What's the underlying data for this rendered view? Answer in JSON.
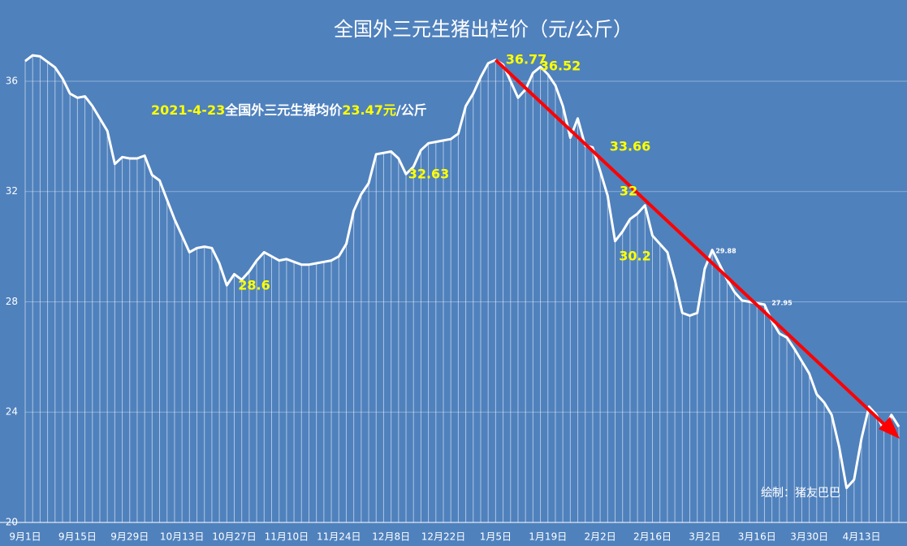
{
  "chart_data": {
    "type": "line",
    "title": "全国外三元生猪出栏价（元/公斤）",
    "subtitle": [
      "2021-4-23",
      "全国外三元生猪均价",
      "23.47元",
      "/公斤"
    ],
    "credit": "绘制：猪友巴巴",
    "annotations": [
      "36.77",
      "36.52",
      "33.66",
      "32",
      "30.2",
      "32.63",
      "28.6",
      "29.88",
      "27.95"
    ],
    "categories": [
      "9月1日",
      null,
      null,
      null,
      null,
      null,
      null,
      "9月15日",
      null,
      null,
      null,
      null,
      null,
      null,
      "9月29日",
      null,
      null,
      null,
      null,
      null,
      null,
      "10月13日",
      null,
      null,
      null,
      null,
      null,
      null,
      "10月27日",
      null,
      null,
      null,
      null,
      null,
      null,
      "11月10日",
      null,
      null,
      null,
      null,
      null,
      null,
      "11月24日",
      null,
      null,
      null,
      null,
      null,
      null,
      "12月8日",
      null,
      null,
      null,
      null,
      null,
      null,
      "12月22日",
      null,
      null,
      null,
      null,
      null,
      null,
      "1月5日",
      null,
      null,
      null,
      null,
      null,
      null,
      "1月19日",
      null,
      null,
      null,
      null,
      null,
      null,
      "2月2日",
      null,
      null,
      null,
      null,
      null,
      null,
      "2月16日",
      null,
      null,
      null,
      null,
      null,
      null,
      "3月2日",
      null,
      null,
      null,
      null,
      null,
      null,
      "3月16日",
      null,
      null,
      null,
      null,
      null,
      null,
      "3月30日",
      null,
      null,
      null,
      null,
      null,
      null,
      "4月13日",
      null,
      null,
      null,
      null,
      null
    ],
    "values": [
      36.73,
      36.94,
      36.9,
      36.7,
      36.5,
      36.1,
      35.55,
      35.4,
      35.45,
      35.1,
      34.65,
      34.2,
      33.0,
      33.25,
      33.2,
      33.2,
      33.3,
      32.6,
      32.4,
      31.7,
      31.0,
      30.4,
      29.8,
      29.95,
      30.0,
      29.95,
      29.4,
      28.6,
      29.0,
      28.8,
      29.1,
      29.5,
      29.8,
      29.65,
      29.5,
      29.55,
      29.45,
      29.35,
      29.35,
      29.4,
      29.45,
      29.5,
      29.65,
      30.1,
      31.3,
      31.9,
      32.3,
      33.35,
      33.4,
      33.45,
      33.2,
      32.63,
      32.9,
      33.5,
      33.75,
      33.8,
      33.85,
      33.9,
      34.1,
      35.1,
      35.55,
      36.15,
      36.65,
      36.77,
      36.6,
      36.0,
      35.4,
      35.7,
      36.3,
      36.52,
      36.25,
      35.85,
      35.1,
      33.95,
      34.65,
      33.66,
      33.6,
      32.75,
      31.85,
      30.2,
      30.55,
      31.0,
      31.2,
      31.5,
      30.4,
      30.1,
      29.8,
      28.8,
      27.6,
      27.5,
      27.6,
      29.2,
      29.88,
      29.35,
      28.8,
      28.35,
      28.05,
      28.0,
      27.95,
      27.9,
      27.3,
      26.85,
      26.7,
      26.3,
      25.85,
      25.4,
      24.65,
      24.35,
      23.9,
      22.75,
      21.25,
      21.55,
      23.05,
      24.2,
      23.9,
      23.35,
      23.9,
      23.47
    ],
    "color": "#ffffff",
    "arrow_color": "#ff0000",
    "label_color": "#ffff00",
    "ylim": [
      20,
      38
    ],
    "yticks": [
      20,
      24,
      28,
      32,
      36
    ],
    "grid": true
  }
}
